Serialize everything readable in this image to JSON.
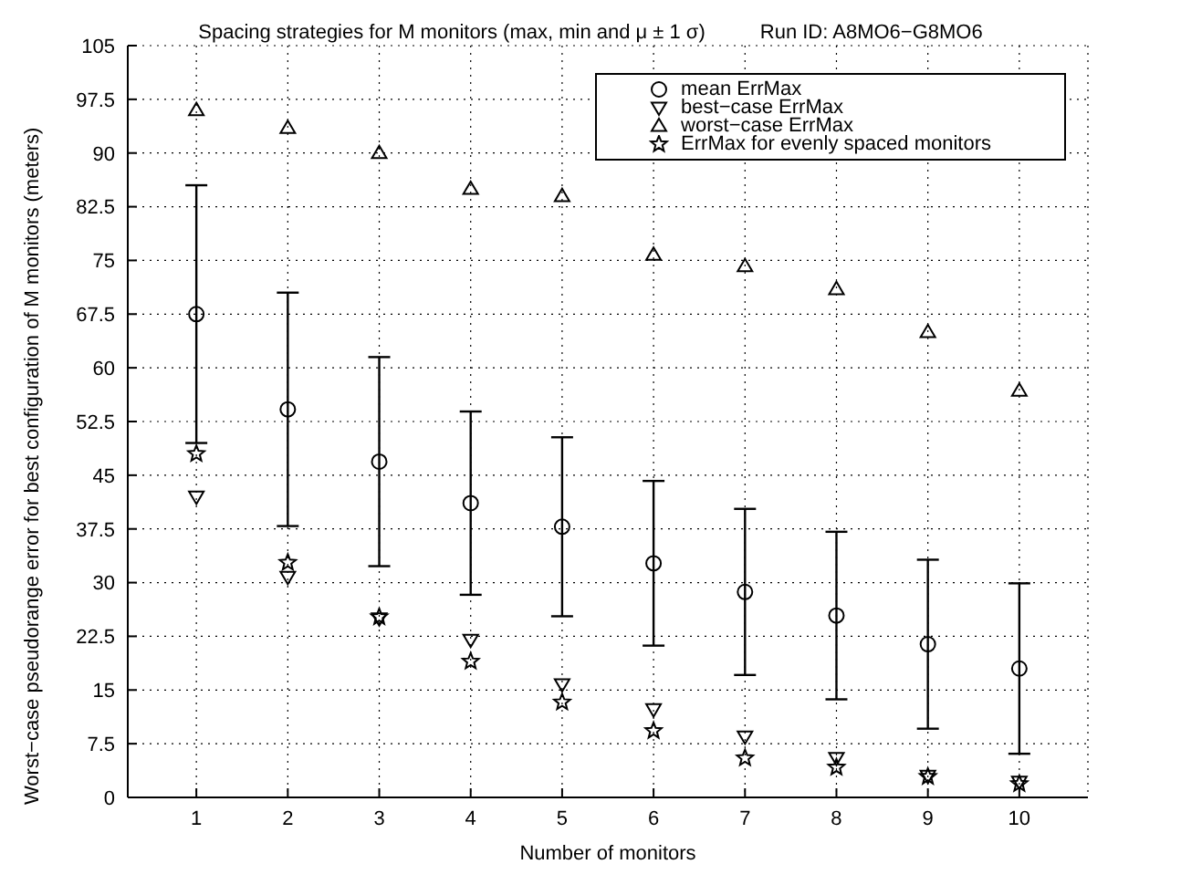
{
  "chart_data": {
    "type": "scatter",
    "title": "Spacing strategies for M monitors (max, min and μ ± 1 σ)",
    "annotations": [
      "Run ID: A8MO6−G8MO6"
    ],
    "xlabel": "Number of monitors",
    "ylabel": "Worst−case pseudorange error for best configuration of M monitors (meters)",
    "x": [
      1,
      2,
      3,
      4,
      5,
      6,
      7,
      8,
      9,
      10
    ],
    "xlim": [
      0.25,
      10.75
    ],
    "xticks": [
      1,
      2,
      3,
      4,
      5,
      6,
      7,
      8,
      9,
      10
    ],
    "ylim": [
      0,
      105
    ],
    "yticks": [
      0,
      7.5,
      15,
      22.5,
      30,
      37.5,
      45,
      52.5,
      60,
      67.5,
      75,
      82.5,
      90,
      97.5,
      105
    ],
    "grid": true,
    "legend": "top right",
    "series": [
      {
        "name": "mean ErrMax",
        "color": "#000000",
        "marker": "circle",
        "values": [
          67.5,
          54.2,
          46.9,
          41.1,
          37.8,
          32.7,
          28.7,
          25.4,
          21.4,
          18.0
        ],
        "errors": [
          18,
          16.3,
          14.6,
          12.8,
          12.5,
          11.5,
          11.6,
          11.7,
          11.8,
          11.9
        ]
      },
      {
        "name": "best−case ErrMax",
        "color": "#000000",
        "marker": "triangle-down",
        "values": [
          42,
          30.8,
          25,
          22,
          15.8,
          12.3,
          8.5,
          5.5,
          3,
          2.2
        ]
      },
      {
        "name": "worst−case ErrMax",
        "color": "#000000",
        "marker": "triangle",
        "values": [
          96,
          93.5,
          90,
          85,
          84,
          75.8,
          74.2,
          71,
          65,
          56.8
        ]
      },
      {
        "name": "ErrMax for evenly spaced monitors",
        "color": "#000000",
        "marker": "star",
        "values": [
          48,
          32.8,
          25.2,
          19,
          13.3,
          9.3,
          5.5,
          4.2,
          2.9,
          1.9
        ]
      }
    ]
  }
}
